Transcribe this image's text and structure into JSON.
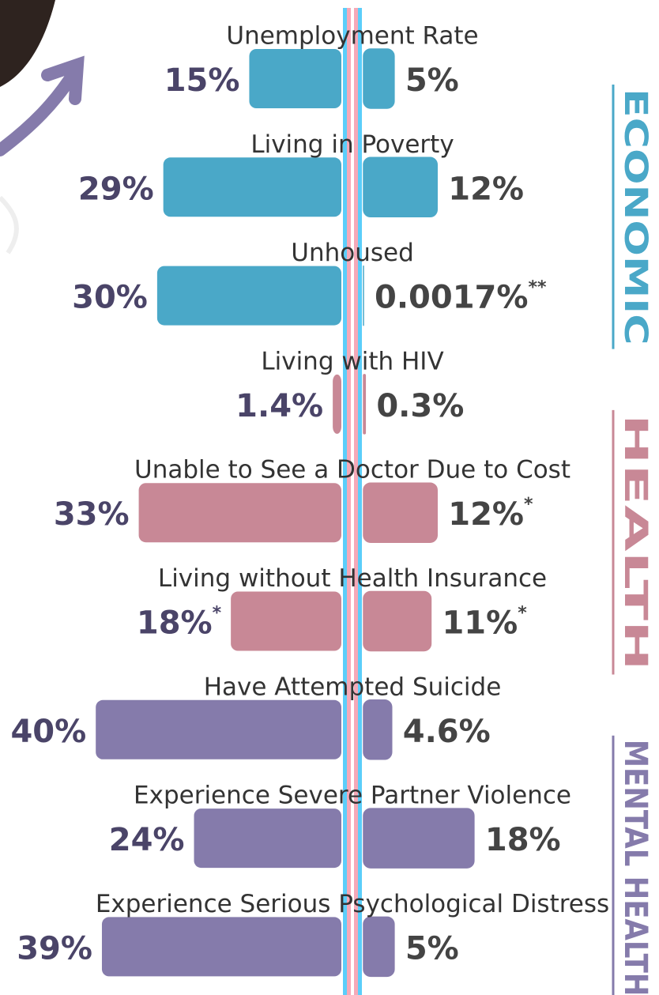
{
  "chart_data": {
    "type": "butterfly",
    "categories": [
      "Unemployment Rate",
      "Living in Poverty",
      "Unhoused",
      "Living with HIV",
      "Unable to See a Doctor Due to Cost",
      "Living without Health Insurance",
      "Have Attempted Suicide",
      "Experience Severe Partner Violence",
      "Experience Serious Psychological Distress"
    ],
    "series": [
      {
        "values": [
          15,
          29,
          30,
          1.4,
          33,
          18,
          40,
          24,
          39
        ],
        "value_labels": [
          "15%",
          "29%",
          "30%",
          "1.4%",
          "33%",
          "18%*",
          "40%",
          "24%",
          "39%"
        ],
        "colors": [
          "#4aa8c8",
          "#4aa8c8",
          "#4aa8c8",
          "#c88896",
          "#c88896",
          "#c88896",
          "#857bab",
          "#857bab",
          "#857bab"
        ]
      },
      {
        "values": [
          5,
          12,
          0.0017,
          0.3,
          12,
          11,
          4.6,
          18,
          5
        ],
        "value_labels": [
          "5%",
          "12%",
          "0.0017%**",
          "0.3%",
          "12%*",
          "11%*",
          "4.6%",
          "18%",
          "5%"
        ],
        "colors": [
          "#4aa8c8",
          "#4aa8c8",
          "#4aa8c8",
          "#c88896",
          "#c88896",
          "#c88896",
          "#857bab",
          "#857bab",
          "#857bab"
        ]
      }
    ],
    "groups": [
      {
        "label": "ECONOMIC",
        "color": "#4aa8c8"
      },
      {
        "label": "HEALTH",
        "color": "#c88896"
      },
      {
        "label": "MENTAL HEALTH",
        "color": "#857bab"
      }
    ]
  }
}
